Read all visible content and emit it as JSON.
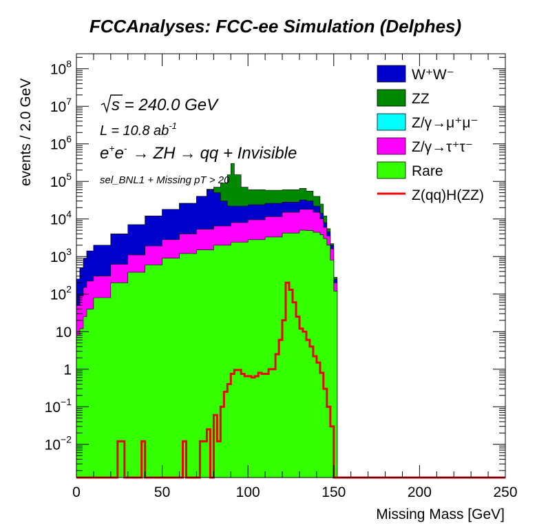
{
  "chart_data": {
    "type": "area",
    "title": "FCCAnalyses: FCC-ee Simulation (Delphes)",
    "xlabel": "Missing Mass [GeV]",
    "ylabel": "events / 2.0 GeV",
    "xlim": [
      0,
      250
    ],
    "ylim": [
      0.0013,
      250000000
    ],
    "yscale": "log",
    "grid": false,
    "legend_position": "top-right",
    "xticks": [
      "0",
      "50",
      "100",
      "150",
      "200",
      "250"
    ],
    "yticks": [
      {
        "value": 0.01,
        "base": "10",
        "exp": "−2"
      },
      {
        "value": 0.1,
        "base": "10",
        "exp": "−1"
      },
      {
        "value": 1,
        "base": "1",
        "exp": ""
      },
      {
        "value": 10,
        "base": "10",
        "exp": ""
      },
      {
        "value": 100,
        "base": "10",
        "exp": "2"
      },
      {
        "value": 1000,
        "base": "10",
        "exp": "3"
      },
      {
        "value": 10000,
        "base": "10",
        "exp": "4"
      },
      {
        "value": 100000,
        "base": "10",
        "exp": "5"
      },
      {
        "value": 1000000,
        "base": "10",
        "exp": "6"
      },
      {
        "value": 10000000,
        "base": "10",
        "exp": "7"
      },
      {
        "value": 100000000,
        "base": "10",
        "exp": "8"
      }
    ],
    "annotations": {
      "sqrt_s": "s = 240.0 GeV",
      "lumi_main": "L = 10.8 ab",
      "lumi_exp": "-1",
      "process": {
        "e1": "e",
        "sup1": "+",
        "e2": "e",
        "sup2": "-",
        "arrow1": "→",
        "zh": "ZH",
        "arrow2": "→",
        "rest": "qq + Invisible"
      },
      "selection": "sel_BNL1 + Missing pT > 20"
    },
    "stack": [
      {
        "name": "Rare",
        "color": "#33ff00",
        "points": [
          [
            0,
            8
          ],
          [
            2,
            12
          ],
          [
            4,
            25
          ],
          [
            6,
            40
          ],
          [
            10,
            80
          ],
          [
            20,
            200
          ],
          [
            30,
            380
          ],
          [
            40,
            600
          ],
          [
            50,
            900
          ],
          [
            60,
            1200
          ],
          [
            70,
            1500
          ],
          [
            80,
            2000
          ],
          [
            90,
            2400
          ],
          [
            100,
            2800
          ],
          [
            110,
            3300
          ],
          [
            120,
            4200
          ],
          [
            130,
            5000
          ],
          [
            134,
            4900
          ],
          [
            138,
            4400
          ],
          [
            142,
            3800
          ],
          [
            144,
            3000
          ],
          [
            146,
            2000
          ],
          [
            148,
            800
          ],
          [
            150,
            120
          ],
          [
            152,
            0.0013
          ]
        ]
      },
      {
        "name": "Z/γ→τ⁺τ⁻",
        "color": "#ff00ff",
        "points": [
          [
            0,
            50
          ],
          [
            2,
            90
          ],
          [
            4,
            150
          ],
          [
            6,
            220
          ],
          [
            10,
            300
          ],
          [
            20,
            620
          ],
          [
            30,
            1100
          ],
          [
            40,
            1900
          ],
          [
            50,
            2800
          ],
          [
            60,
            4000
          ],
          [
            70,
            5300
          ],
          [
            80,
            6500
          ],
          [
            90,
            8000
          ],
          [
            100,
            9500
          ],
          [
            110,
            11500
          ],
          [
            120,
            15000
          ],
          [
            130,
            18000
          ],
          [
            134,
            18000
          ],
          [
            138,
            15000
          ],
          [
            142,
            10000
          ],
          [
            144,
            6000
          ],
          [
            146,
            3500
          ],
          [
            148,
            1600
          ],
          [
            150,
            200
          ],
          [
            152,
            0.0013
          ]
        ]
      },
      {
        "name": "Z/γ→μ⁺μ⁻",
        "color": "#00ffff",
        "points": [
          [
            0,
            50
          ],
          [
            2,
            90
          ],
          [
            4,
            150
          ],
          [
            6,
            220
          ],
          [
            10,
            300
          ],
          [
            20,
            620
          ],
          [
            30,
            1100
          ],
          [
            40,
            1900
          ],
          [
            50,
            2800
          ],
          [
            60,
            4000
          ],
          [
            70,
            5300
          ],
          [
            80,
            6500
          ],
          [
            90,
            8000
          ],
          [
            100,
            9500
          ],
          [
            110,
            11500
          ],
          [
            120,
            15000
          ],
          [
            130,
            18000
          ],
          [
            134,
            18000
          ],
          [
            138,
            15000
          ],
          [
            142,
            10000
          ],
          [
            144,
            6000
          ],
          [
            146,
            3500
          ],
          [
            148,
            1600
          ],
          [
            150,
            200
          ],
          [
            152,
            0.0013
          ]
        ]
      },
      {
        "name": "W⁺W⁻",
        "color": "#0000cc",
        "points": [
          [
            0,
            250
          ],
          [
            2,
            500
          ],
          [
            4,
            900
          ],
          [
            6,
            1400
          ],
          [
            10,
            2000
          ],
          [
            20,
            4000
          ],
          [
            30,
            7000
          ],
          [
            40,
            12000
          ],
          [
            50,
            18000
          ],
          [
            60,
            26000
          ],
          [
            70,
            40000
          ],
          [
            76,
            60000
          ],
          [
            80,
            50000
          ],
          [
            84,
            30000
          ],
          [
            88,
            22000
          ],
          [
            92,
            22000
          ],
          [
            100,
            24000
          ],
          [
            110,
            26000
          ],
          [
            120,
            28000
          ],
          [
            130,
            32000
          ],
          [
            134,
            30000
          ],
          [
            138,
            22000
          ],
          [
            142,
            14000
          ],
          [
            144,
            8000
          ],
          [
            146,
            4500
          ],
          [
            148,
            2000
          ],
          [
            150,
            250
          ],
          [
            152,
            0.0013
          ]
        ]
      },
      {
        "name": "ZZ",
        "color": "#008800",
        "points": [
          [
            0,
            250
          ],
          [
            2,
            500
          ],
          [
            4,
            900
          ],
          [
            6,
            1400
          ],
          [
            10,
            2000
          ],
          [
            20,
            4000
          ],
          [
            30,
            7000
          ],
          [
            40,
            12000
          ],
          [
            50,
            18000
          ],
          [
            60,
            26000
          ],
          [
            70,
            40000
          ],
          [
            76,
            62000
          ],
          [
            80,
            70000
          ],
          [
            84,
            90000
          ],
          [
            88,
            150000
          ],
          [
            90,
            300000
          ],
          [
            92,
            150000
          ],
          [
            96,
            70000
          ],
          [
            100,
            60000
          ],
          [
            110,
            58000
          ],
          [
            120,
            60000
          ],
          [
            130,
            65000
          ],
          [
            134,
            55000
          ],
          [
            138,
            40000
          ],
          [
            142,
            25000
          ],
          [
            144,
            12000
          ],
          [
            146,
            5500
          ],
          [
            148,
            2200
          ],
          [
            150,
            280
          ],
          [
            152,
            0.0013
          ]
        ]
      }
    ],
    "signal": {
      "name": "Z(qq)H(ZZ)",
      "color": "#ee0000",
      "points": [
        [
          0,
          0.0013
        ],
        [
          24,
          0.0013
        ],
        [
          24,
          0.012
        ],
        [
          28,
          0.012
        ],
        [
          28,
          0.0013
        ],
        [
          38,
          0.0013
        ],
        [
          38,
          0.012
        ],
        [
          40,
          0.012
        ],
        [
          40,
          0.0013
        ],
        [
          62,
          0.0013
        ],
        [
          62,
          0.012
        ],
        [
          64,
          0.012
        ],
        [
          64,
          0.0013
        ],
        [
          72,
          0.0013
        ],
        [
          72,
          0.012
        ],
        [
          76,
          0.012
        ],
        [
          76,
          0.025
        ],
        [
          78,
          0.025
        ],
        [
          78,
          0.0013
        ],
        [
          80,
          0.0013
        ],
        [
          80,
          0.06
        ],
        [
          82,
          0.06
        ],
        [
          82,
          0.012
        ],
        [
          84,
          0.012
        ],
        [
          84,
          0.1
        ],
        [
          86,
          0.1
        ],
        [
          86,
          0.25
        ],
        [
          88,
          0.25
        ],
        [
          88,
          0.4
        ],
        [
          90,
          0.4
        ],
        [
          90,
          0.75
        ],
        [
          92,
          0.75
        ],
        [
          92,
          0.95
        ],
        [
          96,
          0.95
        ],
        [
          96,
          0.75
        ],
        [
          98,
          0.75
        ],
        [
          98,
          0.65
        ],
        [
          102,
          0.65
        ],
        [
          102,
          0.6
        ],
        [
          104,
          0.6
        ],
        [
          104,
          0.65
        ],
        [
          106,
          0.65
        ],
        [
          106,
          0.8
        ],
        [
          108,
          0.8
        ],
        [
          108,
          0.75
        ],
        [
          112,
          0.75
        ],
        [
          112,
          1
        ],
        [
          116,
          1
        ],
        [
          116,
          2.5
        ],
        [
          118,
          2.5
        ],
        [
          118,
          6
        ],
        [
          120,
          6
        ],
        [
          120,
          20
        ],
        [
          122,
          20
        ],
        [
          122,
          200
        ],
        [
          124,
          200
        ],
        [
          124,
          130
        ],
        [
          126,
          130
        ],
        [
          126,
          60
        ],
        [
          128,
          60
        ],
        [
          128,
          25
        ],
        [
          130,
          25
        ],
        [
          130,
          12
        ],
        [
          132,
          12
        ],
        [
          132,
          10
        ],
        [
          134,
          10
        ],
        [
          134,
          6
        ],
        [
          136,
          6
        ],
        [
          136,
          4
        ],
        [
          138,
          4
        ],
        [
          138,
          2.2
        ],
        [
          140,
          2.2
        ],
        [
          140,
          1.5
        ],
        [
          142,
          1.5
        ],
        [
          142,
          0.8
        ],
        [
          144,
          0.8
        ],
        [
          144,
          0.3
        ],
        [
          146,
          0.3
        ],
        [
          146,
          0.1
        ],
        [
          148,
          0.1
        ],
        [
          148,
          0.03
        ],
        [
          150,
          0.03
        ],
        [
          150,
          0.0013
        ],
        [
          250,
          0.0013
        ]
      ]
    },
    "legend": [
      {
        "label": "W⁺W⁻",
        "color": "#0000cc",
        "kind": "fill"
      },
      {
        "label": "ZZ",
        "color": "#008800",
        "kind": "fill"
      },
      {
        "label": "Z/γ→μ⁺μ⁻",
        "color": "#00ffff",
        "kind": "fill"
      },
      {
        "label": "Z/γ→τ⁺τ⁻",
        "color": "#ff00ff",
        "kind": "fill"
      },
      {
        "label": "Rare",
        "color": "#33ff00",
        "kind": "fill"
      },
      {
        "label": "Z(qq)H(ZZ)",
        "color": "#ee0000",
        "kind": "line"
      }
    ]
  }
}
